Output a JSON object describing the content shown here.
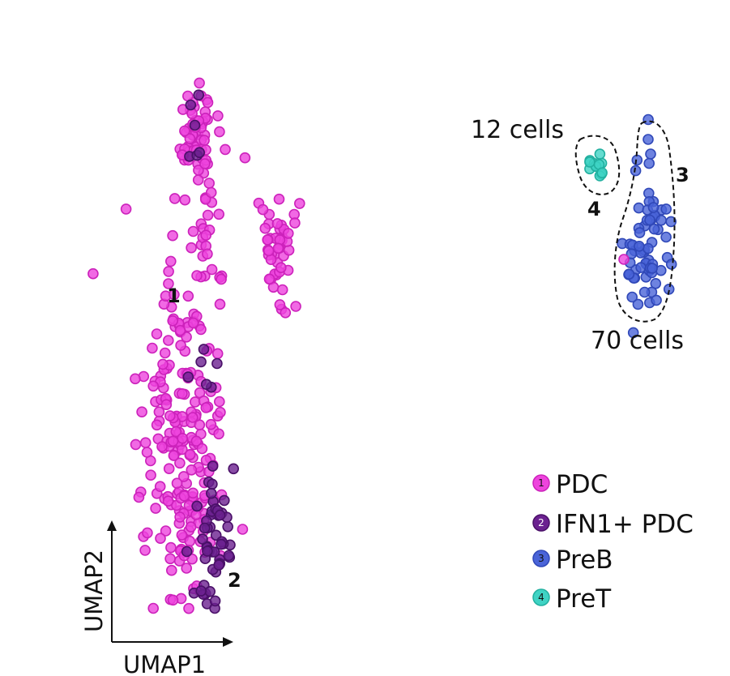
{
  "chart_data": {
    "type": "scatter",
    "xlabel": "UMAP1",
    "ylabel": "UMAP2",
    "series": [
      {
        "id": "1",
        "name": "PDC",
        "color": "#ee44dd",
        "edge": "#cc22bb"
      },
      {
        "id": "2",
        "name": "IFN1+ PDC",
        "color": "#6b2190",
        "edge": "#4a1068"
      },
      {
        "id": "3",
        "name": "PreB",
        "color": "#4a64d8",
        "edge": "#3048b8"
      },
      {
        "id": "4",
        "name": "PreT",
        "color": "#3fd3c4",
        "edge": "#22b0a0"
      }
    ],
    "annotations": {
      "cluster_1": "1",
      "cluster_2": "2",
      "cluster_3": "3",
      "cluster_4": "4",
      "count_pret": "12 cells",
      "count_preb": "70 cells"
    }
  }
}
